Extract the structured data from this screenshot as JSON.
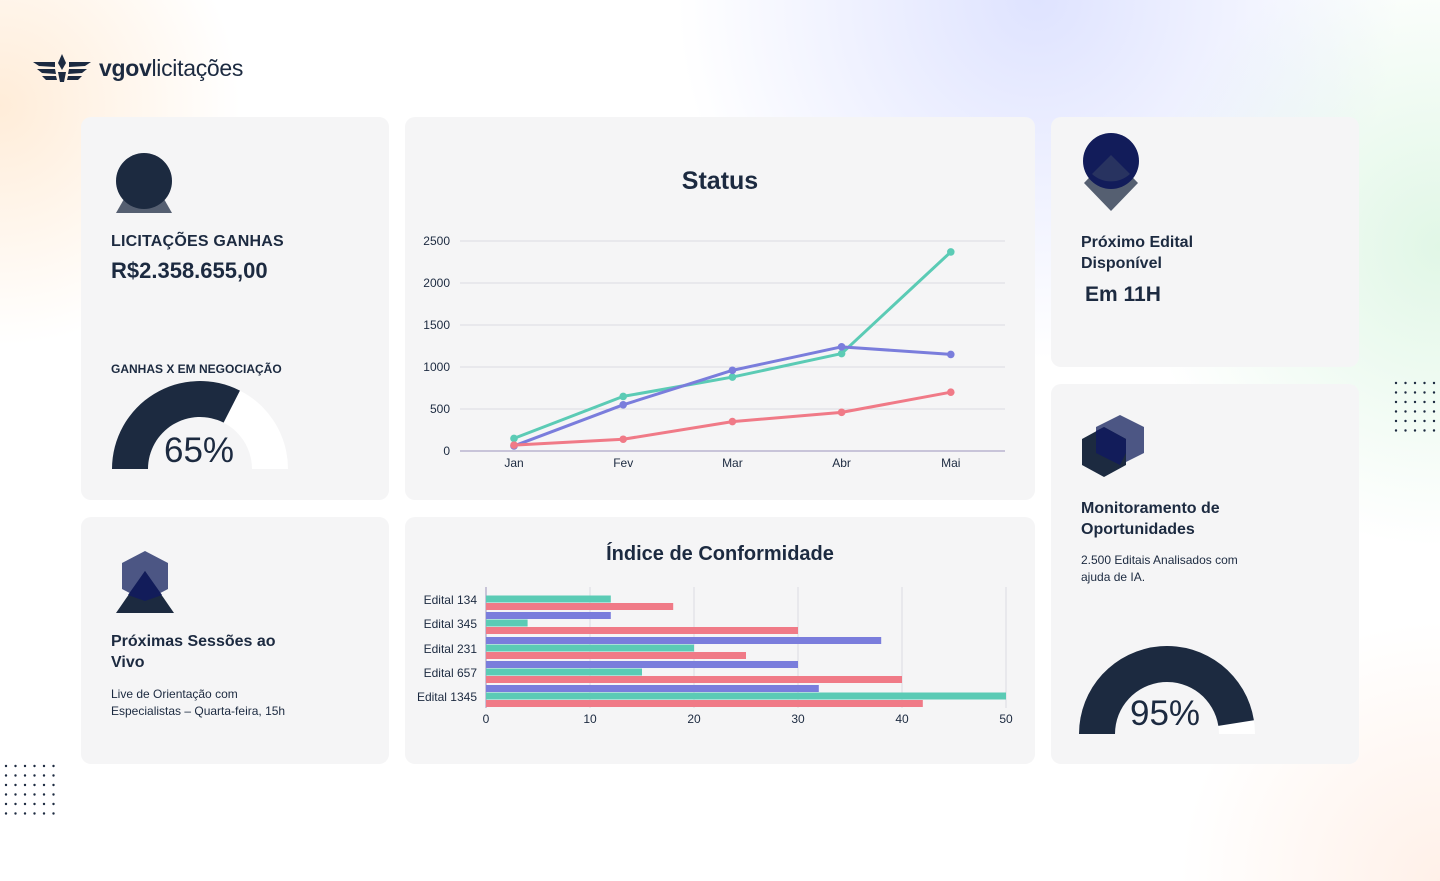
{
  "brand": {
    "logo_bold": "vgov",
    "logo_light": "licitações"
  },
  "cards": {
    "licitacoes": {
      "label": "LICITAÇÕES GANHAS",
      "value": "R$2.358.655,00",
      "gauge_label": "GANHAS X EM NEGOCIAÇÃO",
      "gauge_value_text": "65%",
      "gauge_fraction": 0.65,
      "icon": "user-icon"
    },
    "proximo_edital": {
      "title_line1": "Próximo Edital",
      "title_line2": "Disponível",
      "value": "Em 11H",
      "icon": "location-pin-icon"
    },
    "monitoramento": {
      "title_line1": "Monitoramento de",
      "title_line2": "Oportunidades",
      "desc_line1": "2.500 Editais Analisados com",
      "desc_line2": "ajuda de IA.",
      "gauge_value_text": "95%",
      "gauge_fraction": 0.95,
      "icon": "hexagon-layers-icon"
    },
    "sessoes": {
      "title_line1": "Próximas Sessões ao",
      "title_line2": "Vivo",
      "desc_line1": "Live de Orientação com",
      "desc_line2": "Especialistas – Quarta-feira, 15h",
      "icon": "hexagon-triangle-icon"
    }
  },
  "colors": {
    "navy": "#1c2a40",
    "teal": "#5bcbb5",
    "purple": "#7a7ddc",
    "pink": "#f07a87",
    "card": "#f5f5f6"
  },
  "chart_data": [
    {
      "type": "line",
      "title": "Status",
      "categories": [
        "Jan",
        "Fev",
        "Mar",
        "Abr",
        "Mai"
      ],
      "yticks": [
        0,
        500,
        1000,
        1500,
        2000,
        2500
      ],
      "ylim": [
        0,
        2500
      ],
      "grid": true,
      "series": [
        {
          "color": "#5bcbb5",
          "values": [
            150,
            650,
            880,
            1160,
            2370
          ]
        },
        {
          "color": "#7a7ddc",
          "values": [
            60,
            550,
            960,
            1240,
            1150
          ]
        },
        {
          "color": "#f07a87",
          "values": [
            70,
            140,
            350,
            460,
            700
          ]
        }
      ]
    },
    {
      "type": "bar",
      "orientation": "horizontal",
      "title": "Índice de Conformidade",
      "categories": [
        "Edital 134",
        "Edital 345",
        "Edital 231",
        "Edital 657",
        "Edital 1345"
      ],
      "xticks": [
        0,
        10,
        20,
        30,
        40,
        50
      ],
      "xlim": [
        0,
        50
      ],
      "grid": true,
      "series": [
        {
          "color": "#7a7ddc",
          "values": [
            null,
            12,
            38,
            30,
            32
          ]
        },
        {
          "color": "#5bcbb5",
          "values": [
            12,
            4,
            20,
            15,
            50
          ]
        },
        {
          "color": "#f07a87",
          "values": [
            18,
            30,
            25,
            40,
            42
          ]
        }
      ]
    }
  ]
}
